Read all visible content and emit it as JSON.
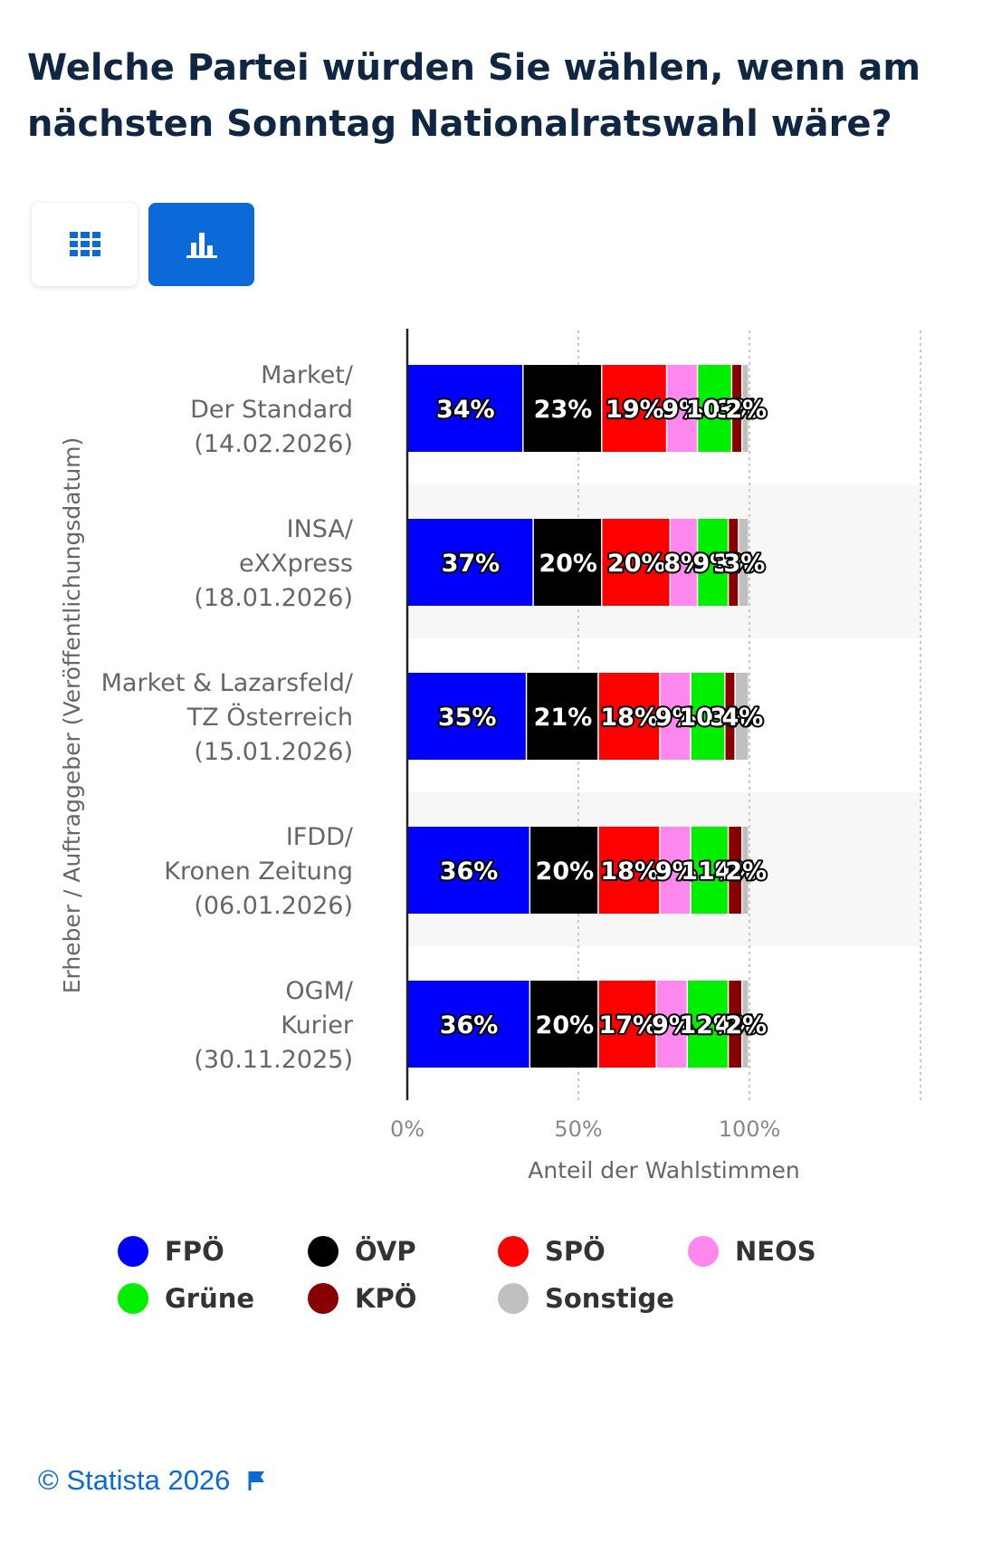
{
  "title": "Welche Partei würden Sie wählen, wenn am nächsten Sonntag Nationalratswahl wäre?",
  "view_toggle": {
    "table_icon": "grid-icon",
    "chart_icon": "bar-chart-icon",
    "active": "chart"
  },
  "colors": {
    "accent": "#0b6ad8",
    "title": "#0f2742",
    "FPÖ": "#0000ff",
    "ÖVP": "#000000",
    "SPÖ": "#ff0000",
    "NEOS": "#ff88ee",
    "Grüne": "#00ee00",
    "KPÖ": "#880000",
    "Sonstige": "#c0c0c0"
  },
  "chart_data": {
    "type": "bar",
    "orientation": "horizontal",
    "stacked": true,
    "title": "Welche Partei würden Sie wählen, wenn am nächsten Sonntag Nationalratswahl wäre?",
    "xlabel": "Anteil der Wahlstimmen",
    "ylabel": "Erheber / Auftraggeber (Veröffentlichungsdatum)",
    "xlim": [
      0,
      150
    ],
    "xticks": [
      0,
      50,
      100
    ],
    "xtick_labels": [
      "0%",
      "50%",
      "100%"
    ],
    "legend_position": "bottom",
    "categories": [
      [
        "Market/",
        "Der Standard",
        "(14.02.2026)"
      ],
      [
        "INSA/",
        "eXXpress",
        "(18.01.2026)"
      ],
      [
        "Market & Lazarsfeld/",
        "TZ Österreich",
        "(15.01.2026)"
      ],
      [
        "IFDD/",
        "Kronen Zeitung",
        "(06.01.2026)"
      ],
      [
        "OGM/",
        "Kurier",
        "(30.11.2025)"
      ]
    ],
    "series": [
      {
        "name": "FPÖ",
        "values": [
          34,
          37,
          35,
          36,
          36
        ]
      },
      {
        "name": "ÖVP",
        "values": [
          23,
          20,
          21,
          20,
          20
        ]
      },
      {
        "name": "SPÖ",
        "values": [
          19,
          20,
          18,
          18,
          17
        ]
      },
      {
        "name": "NEOS",
        "values": [
          9,
          8,
          9,
          9,
          9
        ]
      },
      {
        "name": "Grüne",
        "values": [
          10,
          9,
          10,
          11,
          12
        ]
      },
      {
        "name": "KPÖ",
        "values": [
          3,
          3,
          3,
          4,
          4
        ]
      },
      {
        "name": "Sonstige",
        "values": [
          2,
          3,
          4,
          2,
          2
        ]
      }
    ]
  },
  "footer": {
    "text": "© Statista 2026",
    "icon": "flag-icon"
  }
}
